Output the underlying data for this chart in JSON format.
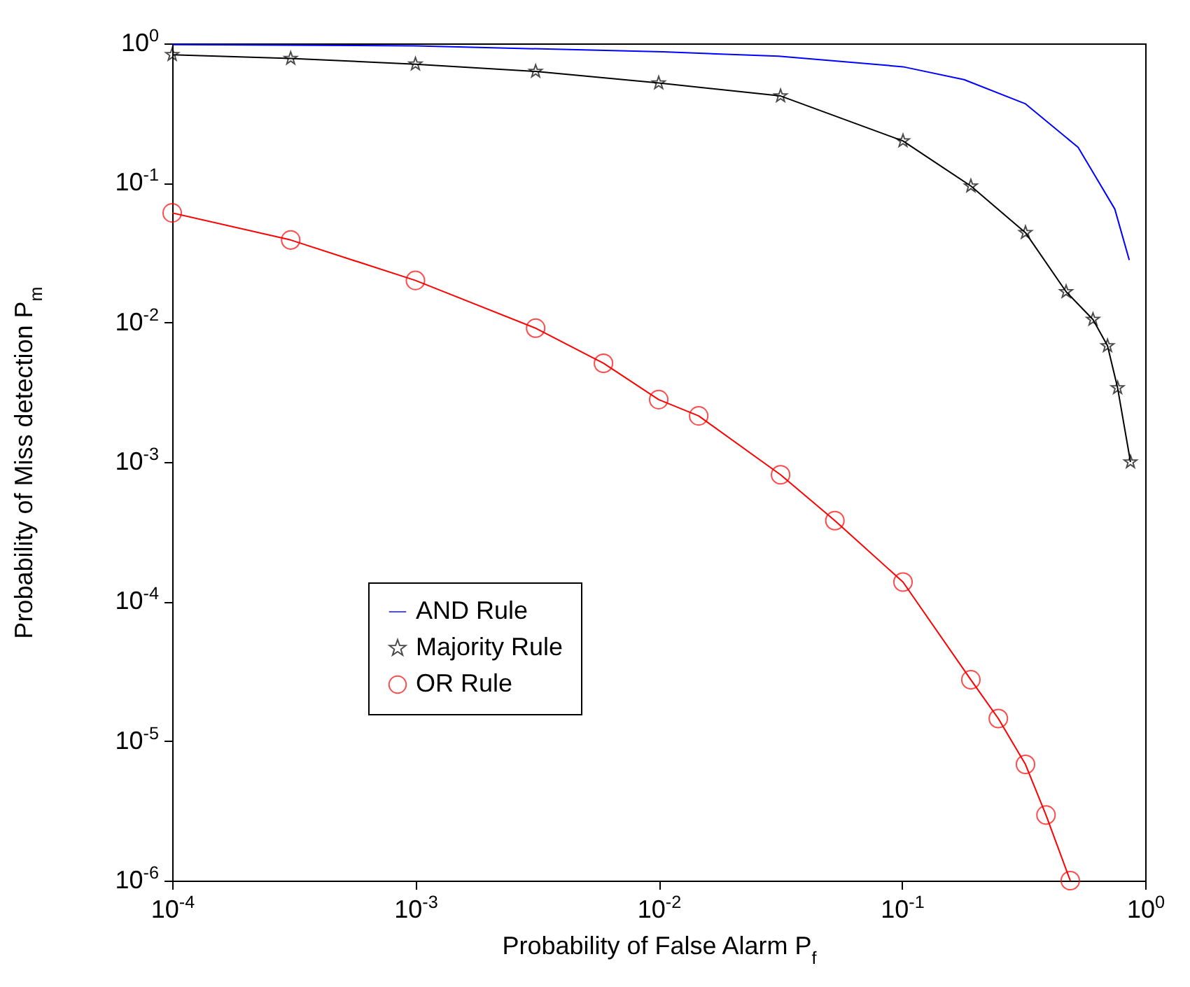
{
  "chart_data": {
    "type": "line",
    "xlabel": "Probability of False Alarm P$_{f}$",
    "ylabel": "Probability of Miss detection P$_{m}$",
    "log": "xy",
    "grid": false,
    "legend": "bottom left",
    "xlim": [
      0.0001,
      1
    ],
    "ylim": [
      1e-06,
      1
    ],
    "xticks": [
      {
        "value": 0.0001,
        "label": "10$^{-4}$"
      },
      {
        "value": 0.001,
        "label": "10$^{-3}$"
      },
      {
        "value": 0.01,
        "label": "10$^{-2}$"
      },
      {
        "value": 0.1,
        "label": "10$^{-1}$"
      },
      {
        "value": 1,
        "label": "10$^{0}$"
      }
    ],
    "yticks": [
      {
        "value": 1e-06,
        "label": "10$^{-6}$"
      },
      {
        "value": 1e-05,
        "label": "10$^{-5}$"
      },
      {
        "value": 0.0001,
        "label": "10$^{-4}$"
      },
      {
        "value": 0.001,
        "label": "10$^{-3}$"
      },
      {
        "value": 0.01,
        "label": "10$^{-2}$"
      },
      {
        "value": 0.1,
        "label": "10$^{-1}$"
      },
      {
        "value": 1,
        "label": "10$^{0}$"
      }
    ],
    "series": [
      {
        "name": "AND Rule",
        "color": "#0000ff",
        "marker": "none",
        "x": [
          0.0001,
          0.001,
          0.0104,
          0.0311,
          0.101,
          0.18,
          0.321,
          0.53,
          0.75,
          0.86
        ],
        "values": [
          0.98,
          0.96,
          0.87,
          0.81,
          0.68,
          0.55,
          0.37,
          0.18,
          0.065,
          0.028
        ]
      },
      {
        "name": "Majority Rule",
        "color": "#000000",
        "marker": "star",
        "x": [
          0.0001,
          0.000307,
          0.001,
          0.00312,
          0.01,
          0.0317,
          0.101,
          0.192,
          0.322,
          0.473,
          0.61,
          0.7,
          0.77,
          0.87
        ],
        "values": [
          0.83,
          0.78,
          0.71,
          0.63,
          0.52,
          0.42,
          0.2,
          0.095,
          0.044,
          0.0166,
          0.0105,
          0.0068,
          0.0034,
          0.001
        ]
      },
      {
        "name": "OR Rule",
        "color": "#ff0000",
        "marker": "circle",
        "x": [
          0.0001,
          0.000307,
          0.001,
          0.00312,
          0.00593,
          0.01,
          0.0146,
          0.0317,
          0.053,
          0.101,
          0.192,
          0.249,
          0.322,
          0.391,
          0.492
        ],
        "values": [
          0.061,
          0.039,
          0.02,
          0.0091,
          0.0051,
          0.0028,
          0.00214,
          0.00081,
          0.00038,
          0.000138,
          2.75e-05,
          1.45e-05,
          6.8e-06,
          2.95e-06,
          1e-06
        ]
      }
    ]
  }
}
